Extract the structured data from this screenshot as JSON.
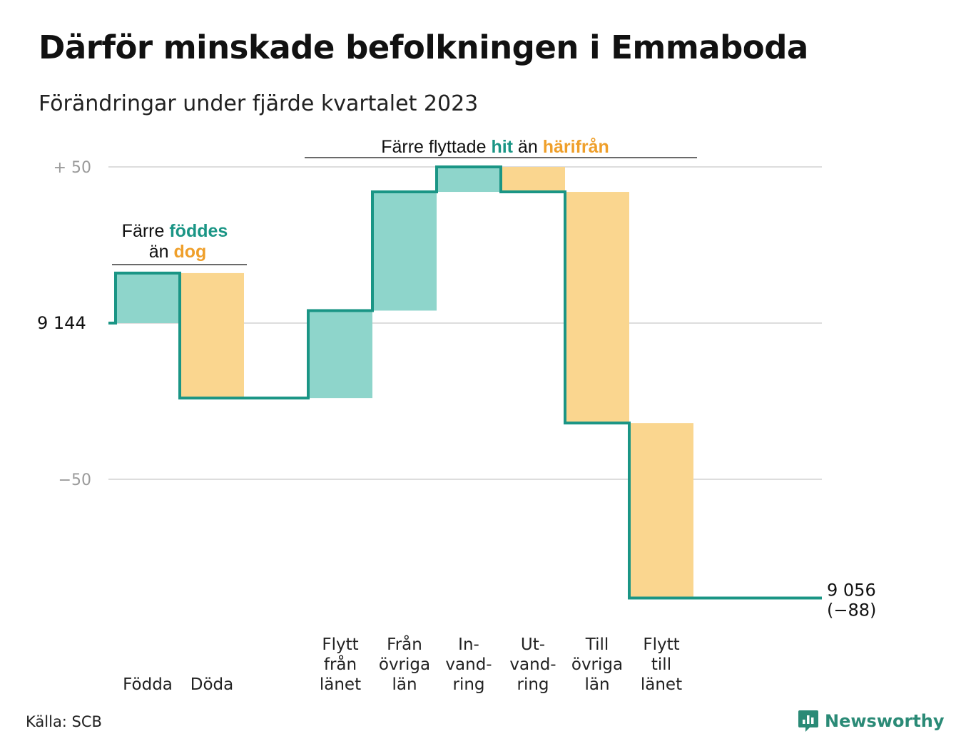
{
  "title": "Därför minskade befolkningen i Emmaboda",
  "subtitle": "Förändringar under fjärde kvartalet 2023",
  "source": "Källa: SCB",
  "brand": "Newsworthy",
  "colors": {
    "increase": "#8ed5cb",
    "decrease": "#fad68f",
    "line": "#1a9585",
    "teal_text": "#1a9585",
    "orange_text": "#ef9f2a",
    "grid": "#dddddd"
  },
  "chart_data": {
    "type": "waterfall",
    "start": {
      "label": "9 144",
      "value": 9144
    },
    "end": {
      "value": 9056,
      "label": "9 056",
      "change_label": "(−88)"
    },
    "y_ticks": [
      {
        "value": 50,
        "label": "+  50"
      },
      {
        "value": 0,
        "label": "9 144"
      },
      {
        "value": -50,
        "label": "−50"
      }
    ],
    "ylim": [
      -95,
      55
    ],
    "steps": [
      {
        "label_lines": [
          "Födda"
        ],
        "change": 16
      },
      {
        "label_lines": [
          "Döda"
        ],
        "change": -40
      },
      {
        "label_lines": [],
        "change": 0
      },
      {
        "label_lines": [
          "Flytt",
          "från",
          "länet"
        ],
        "change": 28
      },
      {
        "label_lines": [
          "Från",
          "övriga",
          "län"
        ],
        "change": 38
      },
      {
        "label_lines": [
          "In-",
          "vand-",
          "ring"
        ],
        "change": 8
      },
      {
        "label_lines": [
          "Ut-",
          "vand-",
          "ring"
        ],
        "change": -8
      },
      {
        "label_lines": [
          "Till",
          "övriga",
          "län"
        ],
        "change": -74
      },
      {
        "label_lines": [
          "Flytt",
          "till",
          "länet"
        ],
        "change": -56
      }
    ],
    "annotations": [
      {
        "parts": [
          "Färre ",
          "föddes"
        ],
        "line2": [
          "än ",
          "dog"
        ]
      },
      {
        "parts": [
          "Färre flyttade ",
          "hit",
          " än ",
          "härifrån"
        ]
      }
    ]
  }
}
